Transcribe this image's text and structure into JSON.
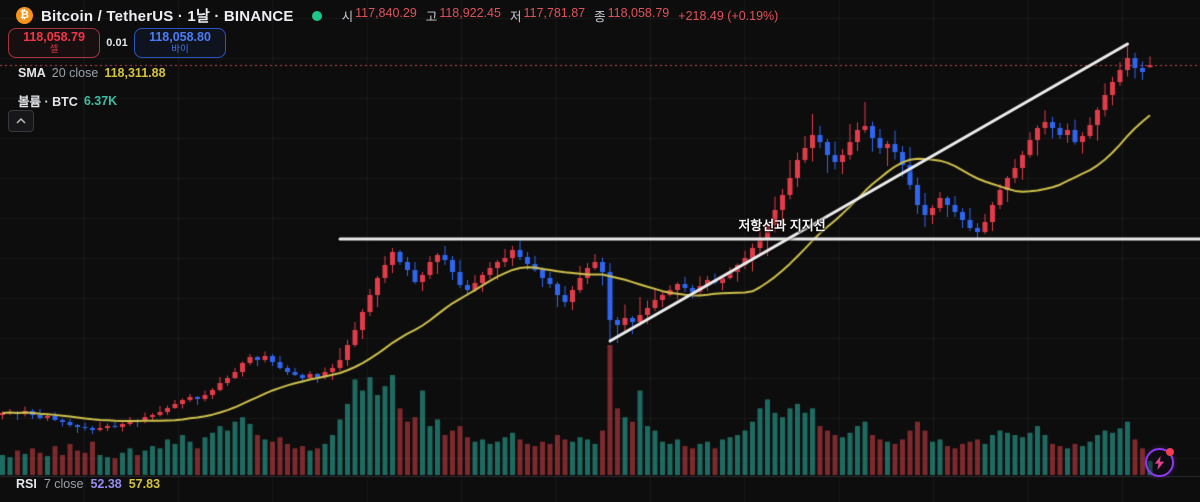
{
  "header": {
    "symbol_icon": "₿",
    "title": "Bitcoin / TetherUS · 1날 · BINANCE",
    "ohlc": {
      "open_label": "시",
      "open": "117,840.29",
      "high_label": "고",
      "high": "118,922.45",
      "low_label": "저",
      "low": "117,781.87",
      "close_label": "종",
      "close": "118,058.79",
      "change": "+218.49 (+0.19%)"
    }
  },
  "trade_buttons": {
    "sell_price": "118,058.79",
    "sell_label": "셀",
    "spread": "0.01",
    "buy_price": "118,058.80",
    "buy_label": "바이"
  },
  "indicators": {
    "sma": {
      "name": "SMA",
      "params": "20 close",
      "value": "118,311.88"
    },
    "volume": {
      "name": "볼륨 · BTC",
      "value": "6.37K"
    }
  },
  "rsi": {
    "name": "RSI",
    "params": "7 close",
    "value1": "52.38",
    "value2": "57.83"
  },
  "annotation_label": "저항선과 지지선",
  "chart_data": {
    "type": "candlestick",
    "title": "Bitcoin / TetherUS 1D BINANCE",
    "ylim": [
      74359,
      124559
    ],
    "last_price": 118058.79,
    "sma_period": 20,
    "resistance_line": {
      "price": 100659,
      "from_index": 45
    },
    "support_trendline": {
      "from_index": 81,
      "from_price": 90459,
      "to_index": 150,
      "to_price": 120159
    },
    "colors": {
      "up": "#e23b49",
      "down": "#2e66f0",
      "vol_up": "rgba(42,166,150,0.62)",
      "vol_down": "rgba(235,72,78,0.50)",
      "sma": "#cfc14c",
      "trendline": "#ededed",
      "price_line": "#c2454e",
      "grid": "rgba(255,255,255,0.055)",
      "separator": "#2b2b30",
      "accent_sell": "#f23645",
      "accent_buy": "#2962ff",
      "status_open": "#1ec787"
    },
    "candles": [
      [
        83059,
        83409,
        82609,
        83259,
        9000
      ],
      [
        83259,
        83659,
        83059,
        83359,
        8000
      ],
      [
        83359,
        83459,
        82559,
        83159,
        11000
      ],
      [
        83159,
        83909,
        82909,
        83459,
        9500
      ],
      [
        83459,
        83659,
        82659,
        83059,
        12000
      ],
      [
        83059,
        83659,
        82609,
        82759,
        10000
      ],
      [
        82759,
        83209,
        82459,
        82959,
        8500
      ],
      [
        82959,
        83359,
        82459,
        82559,
        13000
      ],
      [
        82559,
        82709,
        81909,
        82359,
        9000
      ],
      [
        82359,
        82659,
        81859,
        82059,
        14000
      ],
      [
        82059,
        82159,
        81259,
        81859,
        11000
      ],
      [
        81859,
        82309,
        81509,
        81759,
        10000
      ],
      [
        81759,
        81959,
        81159,
        81559,
        15000
      ],
      [
        81559,
        82359,
        81409,
        81759,
        9000
      ],
      [
        81759,
        82209,
        81459,
        81959,
        8000
      ],
      [
        81959,
        82359,
        81759,
        81859,
        7500
      ],
      [
        81859,
        82309,
        81409,
        82159,
        10000
      ],
      [
        82159,
        82859,
        81959,
        82559,
        12000
      ],
      [
        82559,
        82659,
        81859,
        82459,
        9000
      ],
      [
        82459,
        83309,
        82209,
        82859,
        11000
      ],
      [
        82859,
        83259,
        82459,
        83059,
        13000
      ],
      [
        83059,
        83959,
        82909,
        83359,
        12000
      ],
      [
        83359,
        84009,
        83059,
        83759,
        16000
      ],
      [
        83759,
        84559,
        83659,
        84159,
        14000
      ],
      [
        84159,
        84709,
        83709,
        84559,
        18000
      ],
      [
        84559,
        85159,
        84359,
        84859,
        15000
      ],
      [
        84859,
        84959,
        84059,
        84659,
        12000
      ],
      [
        84659,
        85509,
        84409,
        85059,
        17000
      ],
      [
        85059,
        85759,
        84659,
        85559,
        19000
      ],
      [
        85559,
        86859,
        85409,
        86259,
        22000
      ],
      [
        86259,
        87009,
        85959,
        86759,
        20000
      ],
      [
        86759,
        87759,
        86659,
        87359,
        24000
      ],
      [
        87359,
        88409,
        86909,
        88259,
        26000
      ],
      [
        88259,
        89159,
        88059,
        88859,
        23000
      ],
      [
        88859,
        88959,
        87959,
        88559,
        18000
      ],
      [
        88559,
        89409,
        88309,
        88959,
        16000
      ],
      [
        88959,
        89159,
        87959,
        88359,
        15000
      ],
      [
        88359,
        88959,
        87609,
        87759,
        17000
      ],
      [
        87759,
        88009,
        87059,
        87359,
        14000
      ],
      [
        87359,
        87759,
        86959,
        87059,
        12000
      ],
      [
        87059,
        87209,
        86309,
        86759,
        13000
      ],
      [
        86759,
        87459,
        86559,
        87159,
        11000
      ],
      [
        87159,
        87259,
        86259,
        86859,
        12000
      ],
      [
        86859,
        87809,
        86609,
        87359,
        14000
      ],
      [
        87359,
        88159,
        86559,
        87759,
        18000
      ],
      [
        87759,
        89759,
        87459,
        88559,
        25000
      ],
      [
        88559,
        90559,
        87959,
        90059,
        32000
      ],
      [
        90059,
        92359,
        89859,
        91559,
        43000
      ],
      [
        91559,
        93659,
        90659,
        93359,
        38000
      ],
      [
        93359,
        95659,
        92959,
        95059,
        44000
      ],
      [
        95059,
        96959,
        93859,
        96759,
        36000
      ],
      [
        96759,
        98959,
        96259,
        98059,
        40000
      ],
      [
        98059,
        99759,
        97259,
        99359,
        45000
      ],
      [
        99359,
        99559,
        98059,
        98359,
        30000
      ],
      [
        98359,
        98859,
        96959,
        97559,
        24000
      ],
      [
        97559,
        98359,
        96159,
        96359,
        26000
      ],
      [
        96359,
        97359,
        95459,
        97059,
        38000
      ],
      [
        97059,
        98959,
        96659,
        98359,
        22000
      ],
      [
        98359,
        99259,
        97159,
        99059,
        25000
      ],
      [
        99059,
        99959,
        98059,
        98559,
        18000
      ],
      [
        98559,
        98959,
        96559,
        97359,
        20000
      ],
      [
        97359,
        98559,
        95759,
        96059,
        22000
      ],
      [
        96059,
        96559,
        94959,
        95559,
        17000
      ],
      [
        95559,
        97059,
        95359,
        96259,
        15000
      ],
      [
        96259,
        97359,
        95359,
        97059,
        16000
      ],
      [
        97059,
        98359,
        96659,
        97759,
        14000
      ],
      [
        97759,
        98559,
        96559,
        98359,
        15000
      ],
      [
        98359,
        99659,
        97859,
        98759,
        17000
      ],
      [
        98759,
        99959,
        97959,
        99559,
        19000
      ],
      [
        99559,
        100759,
        98559,
        98859,
        16000
      ],
      [
        98859,
        99359,
        97559,
        98159,
        14000
      ],
      [
        98159,
        98959,
        97359,
        97559,
        13000
      ],
      [
        97559,
        97859,
        95859,
        96759,
        15000
      ],
      [
        96759,
        97359,
        95759,
        96159,
        14000
      ],
      [
        96159,
        96359,
        93859,
        95059,
        18000
      ],
      [
        95059,
        95959,
        93859,
        94359,
        16000
      ],
      [
        94359,
        95959,
        93559,
        95559,
        15000
      ],
      [
        95559,
        97959,
        95259,
        96759,
        17000
      ],
      [
        96759,
        98259,
        96159,
        97759,
        16000
      ],
      [
        97759,
        99159,
        97559,
        98359,
        14000
      ],
      [
        98359,
        98809,
        96009,
        97359,
        20000
      ],
      [
        97359,
        98259,
        90259,
        92559,
        58500
      ],
      [
        92559,
        92859,
        90259,
        92059,
        30000
      ],
      [
        92059,
        94109,
        91309,
        92759,
        26000
      ],
      [
        92759,
        92959,
        91159,
        92359,
        24000
      ],
      [
        92359,
        94859,
        91909,
        93059,
        38000
      ],
      [
        93059,
        94509,
        92159,
        93759,
        22000
      ],
      [
        93759,
        95759,
        93459,
        94559,
        20000
      ],
      [
        94559,
        95299,
        93839,
        95059,
        15000
      ],
      [
        95059,
        96039,
        94899,
        95559,
        14000
      ],
      [
        95559,
        96319,
        94599,
        96159,
        16000
      ],
      [
        96159,
        96879,
        95359,
        95759,
        13000
      ],
      [
        95759,
        96079,
        94719,
        95359,
        12000
      ],
      [
        95359,
        96919,
        95119,
        95959,
        14000
      ],
      [
        95959,
        96959,
        95479,
        96559,
        15000
      ],
      [
        96559,
        97199,
        96099,
        96259,
        12000
      ],
      [
        96259,
        96999,
        95539,
        96759,
        16000
      ],
      [
        96759,
        97839,
        96599,
        97359,
        17000
      ],
      [
        97359,
        98219,
        96399,
        98059,
        18000
      ],
      [
        98059,
        99479,
        97659,
        98759,
        20000
      ],
      [
        98759,
        100209,
        97409,
        99759,
        24000
      ],
      [
        99759,
        101659,
        99159,
        100759,
        30000
      ],
      [
        100759,
        102359,
        98959,
        102059,
        34000
      ],
      [
        102059,
        104909,
        101309,
        103559,
        28000
      ],
      [
        103559,
        105659,
        102359,
        105059,
        26000
      ],
      [
        105059,
        108559,
        104609,
        106759,
        30000
      ],
      [
        106759,
        109309,
        105859,
        108559,
        32000
      ],
      [
        108559,
        110959,
        108259,
        109759,
        28000
      ],
      [
        109759,
        113159,
        108409,
        111059,
        30000
      ],
      [
        111059,
        111959,
        109759,
        110359,
        22000
      ],
      [
        110359,
        110659,
        107259,
        109059,
        20000
      ],
      [
        109059,
        110409,
        107609,
        108359,
        18000
      ],
      [
        108359,
        109659,
        107159,
        109059,
        17000
      ],
      [
        109059,
        112159,
        108609,
        110359,
        19000
      ],
      [
        110359,
        112309,
        109459,
        111559,
        22000
      ],
      [
        111559,
        114359,
        111259,
        111959,
        24000
      ],
      [
        111959,
        112409,
        109409,
        110759,
        18000
      ],
      [
        110759,
        111659,
        109159,
        109759,
        16000
      ],
      [
        109759,
        110459,
        107959,
        110159,
        15000
      ],
      [
        110159,
        111509,
        108609,
        109359,
        14000
      ],
      [
        109359,
        109959,
        106859,
        108059,
        16000
      ],
      [
        108059,
        109859,
        105609,
        106059,
        20000
      ],
      [
        106059,
        106809,
        103159,
        104059,
        24000
      ],
      [
        104059,
        105259,
        101859,
        103059,
        20000
      ],
      [
        103059,
        104059,
        102159,
        103759,
        15000
      ],
      [
        103759,
        105359,
        103359,
        104759,
        16000
      ],
      [
        104759,
        104959,
        102859,
        104059,
        13000
      ],
      [
        104059,
        104959,
        102859,
        103359,
        12000
      ],
      [
        103359,
        103759,
        101759,
        102559,
        14000
      ],
      [
        102559,
        103759,
        101459,
        101759,
        15000
      ],
      [
        101759,
        102259,
        100759,
        101359,
        16000
      ],
      [
        101359,
        103159,
        101159,
        102359,
        14000
      ],
      [
        102359,
        104359,
        101459,
        104059,
        18000
      ],
      [
        104059,
        106159,
        103659,
        105559,
        20000
      ],
      [
        105559,
        106959,
        104359,
        106759,
        19000
      ],
      [
        106759,
        108659,
        106259,
        107759,
        18000
      ],
      [
        107759,
        109449,
        106589,
        109059,
        17000
      ],
      [
        109059,
        111339,
        108799,
        110559,
        19000
      ],
      [
        110559,
        112019,
        108999,
        111759,
        22000
      ],
      [
        111759,
        113529,
        111109,
        112359,
        18000
      ],
      [
        112359,
        112879,
        110719,
        111759,
        14000
      ],
      [
        111759,
        112279,
        110669,
        111059,
        13000
      ],
      [
        111059,
        112209,
        110279,
        111559,
        12000
      ],
      [
        111559,
        112599,
        110099,
        110359,
        14000
      ],
      [
        110359,
        111349,
        109189,
        110959,
        13000
      ],
      [
        110959,
        112839,
        110699,
        112059,
        15000
      ],
      [
        112059,
        113819,
        110499,
        113559,
        18000
      ],
      [
        113559,
        116229,
        112909,
        115059,
        20000
      ],
      [
        115059,
        116879,
        114019,
        116359,
        19000
      ],
      [
        116359,
        118359,
        115969,
        117559,
        21000
      ],
      [
        117559,
        120059,
        116909,
        118759,
        24000
      ],
      [
        118759,
        119279,
        116719,
        117759,
        16000
      ],
      [
        117759,
        118409,
        116579,
        117359,
        12000
      ],
      [
        117840,
        118922,
        117782,
        118059,
        6370
      ]
    ]
  }
}
